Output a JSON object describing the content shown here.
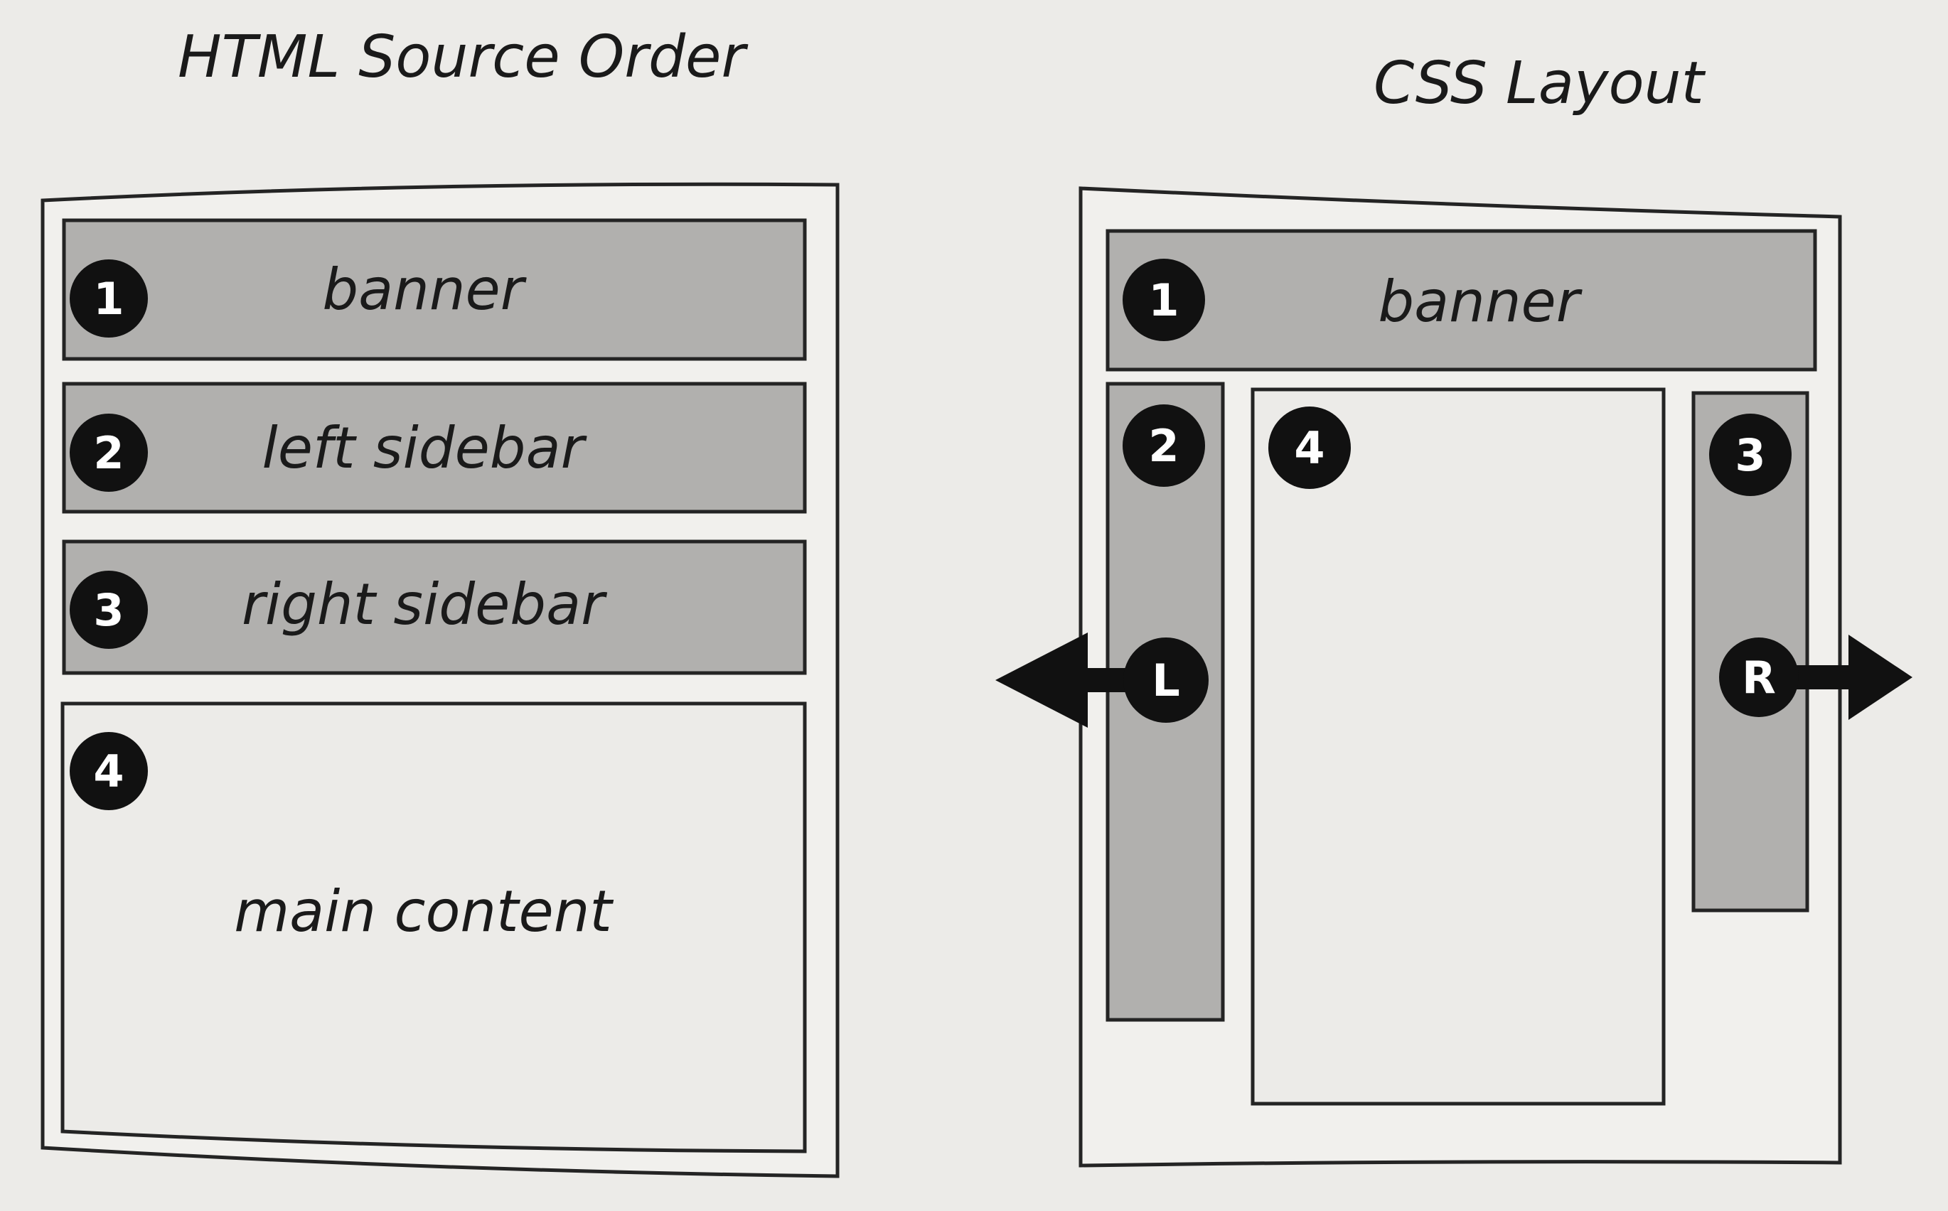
{
  "left_panel": {
    "title": "HTML Source Order",
    "blocks": [
      {
        "number": "1",
        "label": "banner"
      },
      {
        "number": "2",
        "label": "left sidebar"
      },
      {
        "number": "3",
        "label": "right sidebar"
      },
      {
        "number": "4",
        "label": "main content"
      }
    ]
  },
  "right_panel": {
    "title": "CSS Layout",
    "banner": {
      "number": "1",
      "label": "banner"
    },
    "left_sidebar": {
      "number": "2"
    },
    "main_content": {
      "number": "4"
    },
    "right_sidebar": {
      "number": "3"
    },
    "left_float": {
      "letter": "L"
    },
    "right_float": {
      "letter": "R"
    }
  },
  "colors": {
    "background": "#ecebe8",
    "block_fill": "#b1b0ae",
    "outline": "#242424",
    "badge": "#111111"
  }
}
